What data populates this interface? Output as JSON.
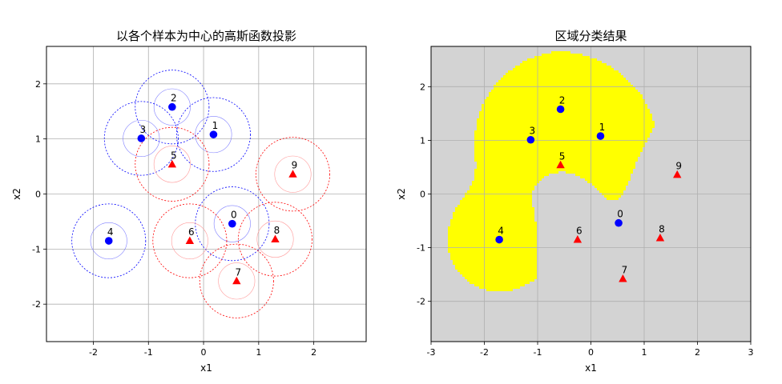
{
  "chart_data": [
    {
      "type": "scatter",
      "title": "以各个样本为中心的高斯函数投影",
      "xlabel": "x1",
      "ylabel": "x2",
      "xlim": [
        -2.85,
        2.95
      ],
      "ylim": [
        -2.68,
        2.68
      ],
      "xticks": [
        -2,
        -1,
        0,
        1,
        2
      ],
      "yticks": [
        -2,
        -1,
        0,
        1,
        2
      ],
      "grid": true,
      "series": [
        {
          "marker": "circle",
          "color": "#0000ff",
          "points": [
            {
              "label": "0",
              "x": 0.52,
              "y": -0.54
            },
            {
              "label": "1",
              "x": 0.18,
              "y": 1.08
            },
            {
              "label": "2",
              "x": -0.57,
              "y": 1.58
            },
            {
              "label": "3",
              "x": -1.13,
              "y": 1.01
            },
            {
              "label": "4",
              "x": -1.72,
              "y": -0.85
            }
          ]
        },
        {
          "marker": "triangle",
          "color": "#ff0000",
          "points": [
            {
              "label": "5",
              "x": -0.57,
              "y": 0.54
            },
            {
              "label": "6",
              "x": -0.25,
              "y": -0.85
            },
            {
              "label": "7",
              "x": 0.6,
              "y": -1.58
            },
            {
              "label": "8",
              "x": 1.3,
              "y": -0.82
            },
            {
              "label": "9",
              "x": 1.62,
              "y": 0.36
            }
          ]
        }
      ],
      "circles": {
        "radii": [
          0.33,
          0.67
        ],
        "inner_style": "dashed",
        "outer_style": "dotted",
        "class0_colors": [
          "#0000ff",
          "#8080ff"
        ],
        "class1_colors": [
          "#ff0000",
          "#ff9999"
        ]
      }
    },
    {
      "type": "heatmap",
      "title": "区域分类结果",
      "xlabel": "x1",
      "ylabel": "x2",
      "xlim": [
        -3,
        3
      ],
      "ylim": [
        -2.75,
        2.75
      ],
      "xticks": [
        -3,
        -2,
        -1,
        0,
        1,
        2,
        3
      ],
      "yticks": [
        -2,
        -1,
        0,
        1,
        2
      ],
      "grid": true,
      "region_colors": {
        "class0": "#ffff00",
        "class1": "#d3d3d3"
      },
      "gaussian_sigma": 0.67,
      "points_same_as_left": true
    }
  ]
}
